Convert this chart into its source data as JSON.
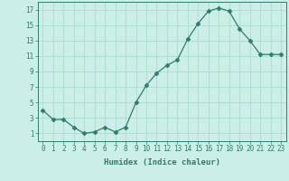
{
  "x": [
    0,
    1,
    2,
    3,
    4,
    5,
    6,
    7,
    8,
    9,
    10,
    11,
    12,
    13,
    14,
    15,
    16,
    17,
    18,
    19,
    20,
    21,
    22,
    23
  ],
  "y": [
    4.0,
    2.8,
    2.8,
    1.8,
    1.0,
    1.2,
    1.8,
    1.2,
    1.8,
    5.0,
    7.2,
    8.8,
    9.8,
    10.5,
    13.2,
    15.2,
    16.8,
    17.2,
    16.8,
    14.5,
    13.0,
    11.2,
    11.2,
    11.2
  ],
  "line_color": "#2e7d6e",
  "marker": "D",
  "marker_size": 2.5,
  "bg_color": "#cceee8",
  "grid_color": "#aaddcc",
  "xlabel": "Humidex (Indice chaleur)",
  "xlim": [
    -0.5,
    23.5
  ],
  "ylim": [
    0,
    18
  ],
  "yticks": [
    1,
    3,
    5,
    7,
    9,
    11,
    13,
    15,
    17
  ],
  "xticks": [
    0,
    1,
    2,
    3,
    4,
    5,
    6,
    7,
    8,
    9,
    10,
    11,
    12,
    13,
    14,
    15,
    16,
    17,
    18,
    19,
    20,
    21,
    22,
    23
  ],
  "axis_color": "#2e7d6e",
  "tick_color": "#2e7d6e",
  "label_fontsize": 6.5,
  "tick_fontsize": 5.5
}
